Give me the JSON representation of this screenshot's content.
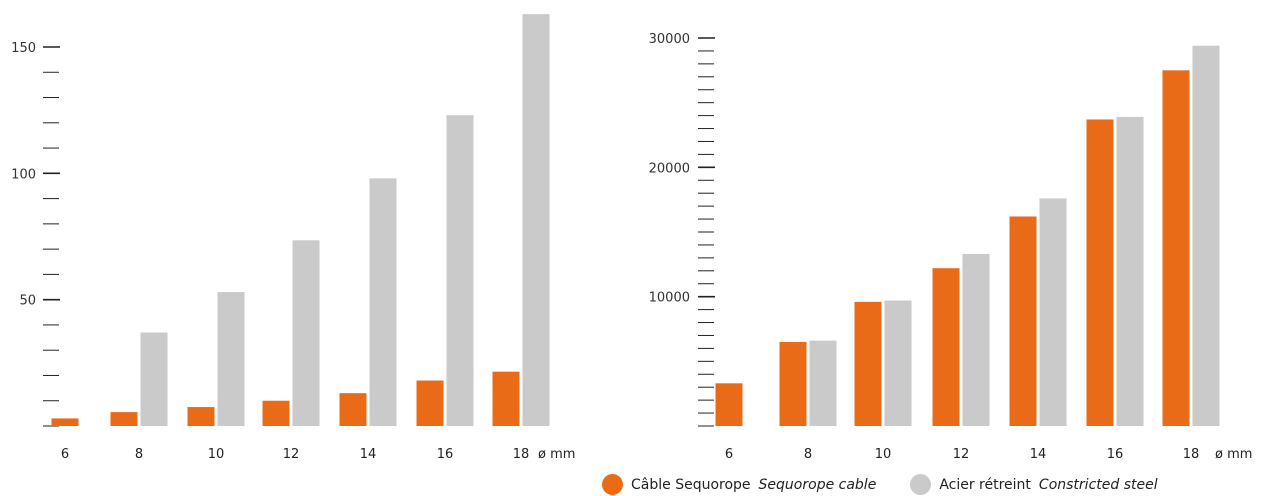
{
  "colors": {
    "sequorope": "#E96B17",
    "steel": "#CACACA",
    "axis": "#222222"
  },
  "legend": {
    "sequorope_label": "Câble Sequorope",
    "sequorope_label_en": "Sequorope cable",
    "steel_label": "Acier rétreint",
    "steel_label_en": "Constricted steel"
  },
  "chart_data": [
    {
      "type": "bar",
      "unit_label": "ø mm",
      "categories": [
        "6",
        "8",
        "10",
        "12",
        "14",
        "16",
        "18"
      ],
      "ylim": [
        0,
        150
      ],
      "yticks": [
        50,
        100,
        150
      ],
      "ytick_labels": [
        "50",
        "100",
        "150"
      ],
      "minor_tick_step": 10,
      "series": [
        {
          "name": "Câble Sequorope",
          "color": "#E96B17",
          "values": [
            3,
            5.5,
            7.5,
            10,
            13,
            18,
            21.5
          ]
        },
        {
          "name": "Acier rétreint",
          "color": "#CACACA",
          "values": [
            null,
            37,
            53,
            73.5,
            98,
            123,
            163
          ]
        }
      ]
    },
    {
      "type": "bar",
      "unit_label": "ø mm",
      "categories": [
        "6",
        "8",
        "10",
        "12",
        "14",
        "16",
        "18"
      ],
      "ylim": [
        0,
        30000
      ],
      "yticks": [
        10000,
        20000,
        30000
      ],
      "ytick_labels": [
        "10000",
        "20000",
        "30000"
      ],
      "minor_tick_step": 1000,
      "series": [
        {
          "name": "Câble Sequorope",
          "color": "#E96B17",
          "values": [
            3300,
            6500,
            9600,
            12200,
            16200,
            23700,
            27500
          ]
        },
        {
          "name": "Acier rétreint",
          "color": "#CACACA",
          "values": [
            null,
            6600,
            9700,
            13300,
            17600,
            23900,
            29400
          ]
        }
      ]
    }
  ]
}
